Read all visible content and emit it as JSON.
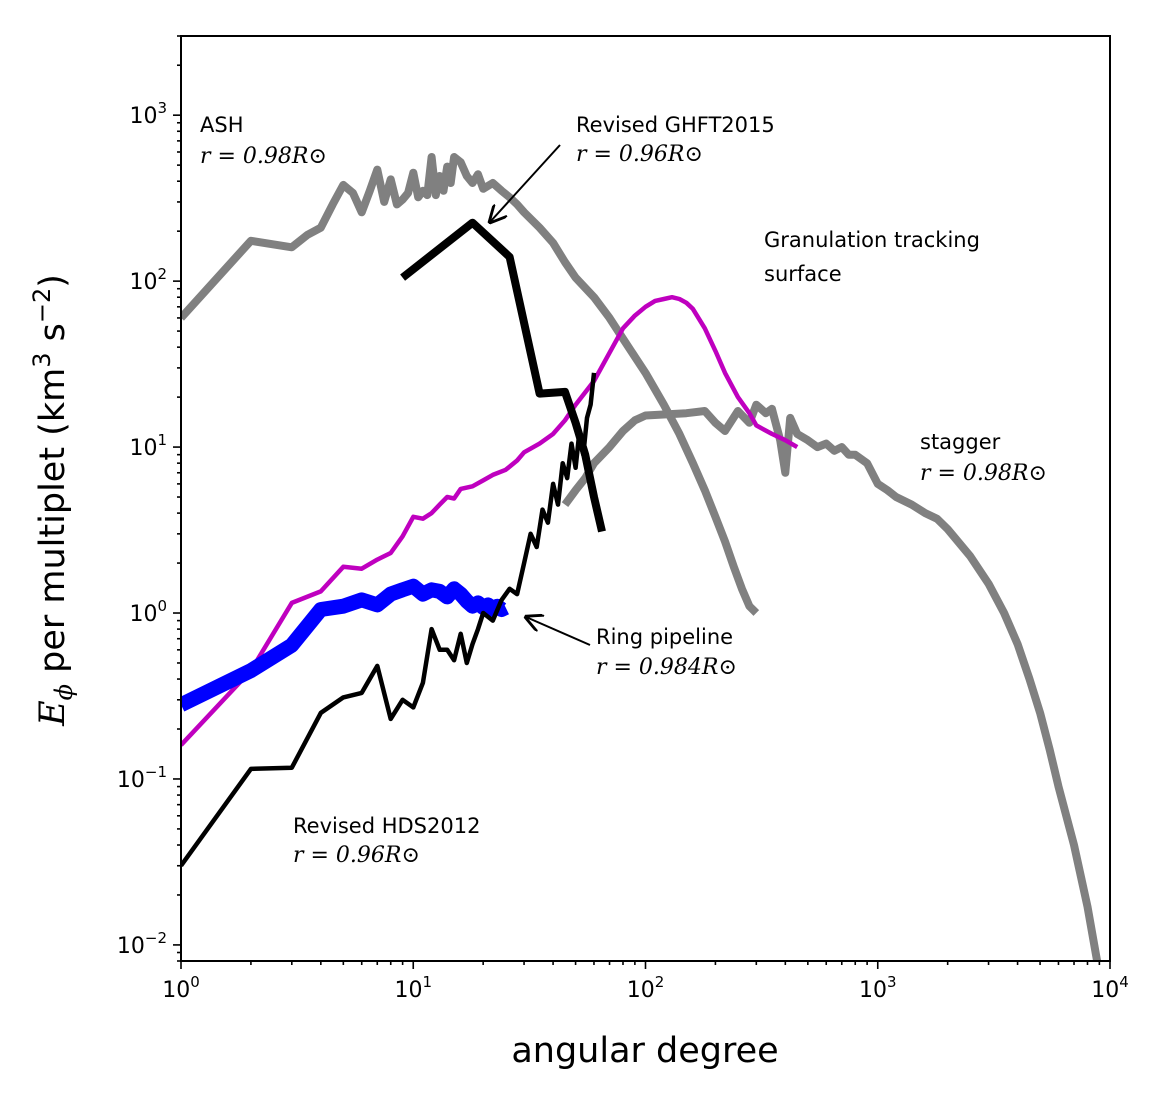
{
  "chart_data": {
    "type": "line",
    "xscale": "log",
    "yscale": "log",
    "xlim": [
      1,
      10000
    ],
    "ylim": [
      0.008,
      3000
    ],
    "xlabel": "angular degree",
    "ylabel": "E_ϕ per multiplet (km^3 s^-2)",
    "ylabel_parts": {
      "E": "E",
      "sub": "ϕ",
      "mid": " per multiplet (km",
      "sup1": "3",
      "s": " s",
      "sup2": "−2",
      "end": ")"
    },
    "xticks": [
      {
        "value": 1,
        "base": "10",
        "exp": "0"
      },
      {
        "value": 10,
        "base": "10",
        "exp": "1"
      },
      {
        "value": 100,
        "base": "10",
        "exp": "2"
      },
      {
        "value": 1000,
        "base": "10",
        "exp": "3"
      },
      {
        "value": 10000,
        "base": "10",
        "exp": "4"
      }
    ],
    "yticks": [
      {
        "value": 0.01,
        "base": "10",
        "exp": "−2"
      },
      {
        "value": 0.1,
        "base": "10",
        "exp": "−1"
      },
      {
        "value": 1,
        "base": "10",
        "exp": "0"
      },
      {
        "value": 10,
        "base": "10",
        "exp": "1"
      },
      {
        "value": 100,
        "base": "10",
        "exp": "2"
      },
      {
        "value": 1000,
        "base": "10",
        "exp": "3"
      }
    ],
    "series": [
      {
        "name": "ASH",
        "color": "#808080",
        "x": [
          1,
          2,
          3,
          3.5,
          4,
          4.5,
          5,
          5.5,
          6,
          6.5,
          7,
          7.5,
          8,
          8.5,
          9,
          9.5,
          10,
          10.5,
          11,
          11.5,
          12,
          12.5,
          13,
          13.5,
          14,
          14.5,
          15,
          16,
          17,
          18,
          19,
          20,
          22,
          24,
          26,
          28,
          30,
          35,
          40,
          45,
          50,
          60,
          70,
          80,
          90,
          100,
          120,
          140,
          160,
          180,
          200,
          220,
          240,
          260,
          280,
          300
        ],
        "y": [
          60,
          175,
          160,
          190,
          210,
          290,
          380,
          340,
          260,
          350,
          470,
          300,
          410,
          290,
          310,
          340,
          450,
          320,
          350,
          330,
          560,
          330,
          430,
          350,
          490,
          390,
          560,
          520,
          430,
          390,
          440,
          360,
          390,
          350,
          320,
          290,
          260,
          210,
          170,
          130,
          105,
          80,
          60,
          45,
          35,
          28,
          18,
          12,
          8,
          5.5,
          3.8,
          2.7,
          1.9,
          1.4,
          1.1,
          1.0
        ]
      },
      {
        "name": "stagger",
        "color": "#808080",
        "x": [
          45,
          50,
          55,
          60,
          70,
          80,
          90,
          100,
          150,
          180,
          200,
          220,
          250,
          280,
          300,
          330,
          350,
          380,
          400,
          420,
          450,
          500,
          550,
          600,
          650,
          700,
          750,
          800,
          900,
          1000,
          1100,
          1200,
          1400,
          1600,
          1800,
          2000,
          2500,
          3000,
          3500,
          4000,
          4500,
          5000,
          5500,
          6000,
          7000,
          8000,
          8800
        ],
        "y": [
          4.5,
          5.5,
          6.5,
          8,
          10,
          12.5,
          14.5,
          15.5,
          16,
          16.5,
          14,
          12.5,
          16.5,
          14,
          18,
          16,
          17,
          11,
          7,
          15,
          12,
          11,
          10,
          10.5,
          9.5,
          10,
          9,
          9,
          8,
          6,
          5.5,
          5,
          4.5,
          4,
          3.7,
          3.2,
          2.2,
          1.5,
          1.0,
          0.65,
          0.4,
          0.25,
          0.15,
          0.09,
          0.04,
          0.017,
          0.008
        ]
      },
      {
        "name": "Revised GHFT2015",
        "color": "#000000",
        "x": [
          9,
          18,
          26,
          35,
          45,
          50,
          55,
          60,
          65
        ],
        "y": [
          105,
          225,
          140,
          21,
          21.5,
          14,
          9,
          5,
          3.1
        ]
      },
      {
        "name": "Granulation tracking surface",
        "color": "#bf00bf",
        "x": [
          1,
          2,
          3,
          4,
          5,
          6,
          7,
          8,
          9,
          10,
          11,
          12,
          13,
          14,
          15,
          16,
          18,
          20,
          22,
          25,
          28,
          30,
          35,
          40,
          45,
          50,
          60,
          70,
          80,
          90,
          100,
          110,
          120,
          130,
          140,
          150,
          160,
          180,
          200,
          220,
          250,
          280,
          300,
          350,
          400,
          450
        ],
        "y": [
          0.16,
          0.45,
          1.15,
          1.35,
          1.9,
          1.85,
          2.1,
          2.3,
          2.9,
          3.8,
          3.7,
          4.0,
          4.5,
          5.0,
          4.9,
          5.6,
          5.8,
          6.3,
          6.8,
          7.3,
          8.3,
          9.3,
          10.5,
          12,
          14.5,
          18,
          25,
          37,
          52,
          62,
          70,
          76,
          78,
          80,
          78,
          74,
          68,
          52,
          38,
          28,
          20,
          16,
          13.5,
          12,
          11,
          10
        ]
      },
      {
        "name": "Ring pipeline",
        "color": "#0000ff",
        "x": [
          1,
          2,
          3,
          4,
          5,
          6,
          7,
          8,
          9,
          10,
          11,
          12,
          13,
          14,
          15,
          16,
          17,
          18,
          19,
          20,
          21,
          22,
          23,
          24,
          25
        ],
        "y": [
          0.28,
          0.45,
          0.64,
          1.05,
          1.1,
          1.2,
          1.12,
          1.3,
          1.38,
          1.45,
          1.3,
          1.38,
          1.35,
          1.25,
          1.4,
          1.3,
          1.18,
          1.1,
          1.15,
          1.08,
          1.12,
          1.05,
          1.1,
          1.05,
          1.08
        ]
      },
      {
        "name": "Revised HDS2012",
        "color": "#000000",
        "x": [
          1,
          2,
          3,
          4,
          5,
          6,
          7,
          8,
          9,
          10,
          11,
          12,
          13,
          14,
          15,
          16,
          17,
          18,
          19,
          20,
          22,
          24,
          26,
          28,
          30,
          32,
          34,
          36,
          38,
          40,
          42,
          44,
          46,
          48,
          50,
          52,
          54,
          56,
          58,
          60
        ],
        "y": [
          0.03,
          0.115,
          0.117,
          0.25,
          0.31,
          0.33,
          0.48,
          0.23,
          0.3,
          0.27,
          0.38,
          0.8,
          0.6,
          0.6,
          0.52,
          0.75,
          0.5,
          0.65,
          0.8,
          1.0,
          0.9,
          1.2,
          1.4,
          1.3,
          2.0,
          3.0,
          2.5,
          4.2,
          3.5,
          6.0,
          4.5,
          8.0,
          6.5,
          10.5,
          7.5,
          12.5,
          9.0,
          15.0,
          18.0,
          28.0
        ]
      }
    ],
    "annotations": {
      "ash": {
        "label": "ASH",
        "formula": "r = 0.98R⊙"
      },
      "ghft": {
        "label": "Revised GHFT2015",
        "formula": "r = 0.96R⊙"
      },
      "granulation": {
        "line1": "Granulation tracking",
        "line2": "surface"
      },
      "stagger": {
        "label": "stagger",
        "formula": "r = 0.98R⊙"
      },
      "ring": {
        "label": "Ring pipeline",
        "formula": "r = 0.984R⊙"
      },
      "hds": {
        "label": "Revised HDS2012",
        "formula": "r = 0.96R⊙"
      }
    },
    "legend": "none",
    "grid": false
  }
}
